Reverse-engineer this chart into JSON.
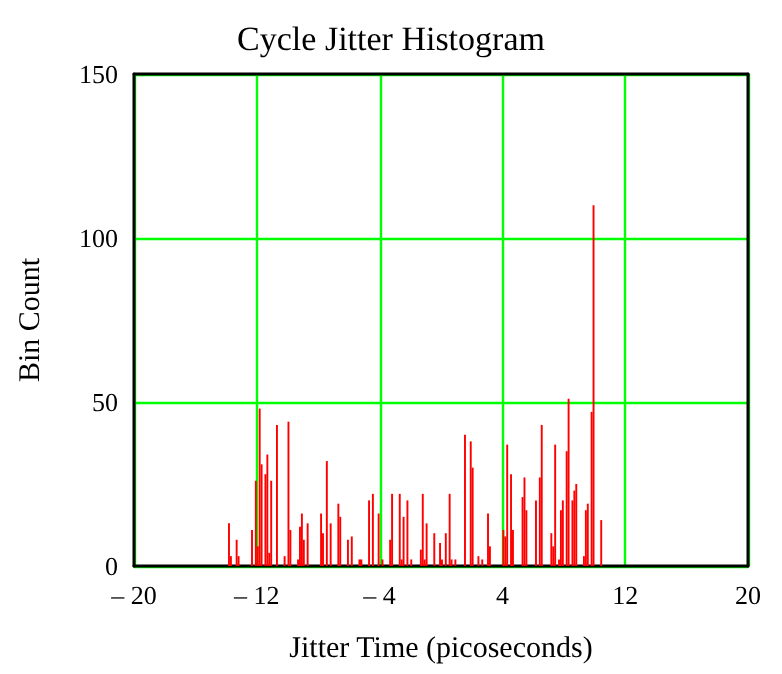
{
  "chart_data": {
    "type": "histogram",
    "title": "Cycle Jitter Histogram",
    "xlabel": "Jitter Time (picoseconds)",
    "ylabel": "Bin Count",
    "color": "#ff0000",
    "bins": [
      -13.875,
      -13.75,
      -13.625,
      -13.375,
      -13.25,
      -13.125,
      -12.375,
      -12.25,
      -12.125,
      -12,
      -11.875,
      -11.75,
      -11.625,
      -11.5,
      -11.375,
      -11.25,
      -11.125,
      -11,
      -10.75,
      -10.625,
      -10.25,
      -10.125,
      -10,
      -9.875,
      -9.75,
      -9.375,
      -9.25,
      -9.125,
      -9,
      -8.875,
      -8.75,
      -8.625,
      -7.875,
      -7.75,
      -7.625,
      -7.5,
      -7.375,
      -7.25,
      -7.125,
      -6.75,
      -6.625,
      -6.5,
      -6.125,
      -6,
      -5.875,
      -5.75,
      -5.375,
      -5.125,
      -4.75,
      -4.625,
      -4.5,
      -4.375,
      -4.125,
      -4,
      -3.875,
      -3.75,
      -3.375,
      -3.25,
      -3.125,
      -2.75,
      -2.625,
      -2.5,
      -2.375,
      -2.25,
      -2.125,
      -2,
      -1.875,
      -1.375,
      -1.25,
      -1.125,
      -1,
      -0.875,
      -0.5,
      -0.375,
      -0.125,
      0,
      0.125,
      0.25,
      0.375,
      0.5,
      0.625,
      0.75,
      0.875,
      1,
      1.5,
      1.625,
      1.875,
      2,
      2.125,
      2.375,
      2.5,
      2.625,
      2.75,
      3,
      3.125,
      3.25,
      4,
      4.125,
      4.25,
      4.375,
      4.5,
      4.625,
      4.75,
      5.25,
      5.375,
      5.5,
      5.625,
      6.125,
      6.25,
      6.375,
      6.5,
      6.625,
      7.125,
      7.25,
      7.375,
      7.5,
      7.625,
      7.75,
      7.875,
      8,
      8.125,
      8.25,
      8.375,
      8.5,
      8.625,
      8.75,
      8.875,
      9.25,
      9.375,
      9.5,
      9.625,
      9.75,
      9.875,
      10,
      10.375,
      10.5
    ],
    "values": [
      13,
      3,
      0,
      8,
      3,
      0,
      11,
      0,
      26,
      6,
      48,
      31,
      0,
      28,
      34,
      4,
      26,
      0,
      43,
      0,
      3,
      0,
      44,
      11,
      0,
      2,
      12,
      16,
      8,
      0,
      13,
      0,
      16,
      10,
      0,
      32,
      0,
      13,
      0,
      19,
      15,
      0,
      8,
      0,
      9,
      0,
      2,
      0,
      20,
      0,
      22,
      0,
      16,
      0,
      2,
      0,
      8,
      22,
      0,
      22,
      2,
      15,
      0,
      20,
      0,
      2,
      0,
      5,
      22,
      2,
      13,
      0,
      10,
      0,
      7,
      2,
      0,
      10,
      0,
      22,
      2,
      0,
      2,
      0,
      40,
      0,
      38,
      30,
      0,
      3,
      0,
      2,
      0,
      16,
      6,
      0,
      11,
      9,
      37,
      0,
      28,
      11,
      0,
      21,
      27,
      17,
      0,
      20,
      0,
      27,
      43,
      0,
      10,
      6,
      37,
      0,
      2,
      17,
      20,
      0,
      35,
      51,
      0,
      20,
      23,
      25,
      0,
      3,
      17,
      19,
      0,
      47,
      110,
      0,
      14
    ],
    "xlim": [
      -20,
      20
    ],
    "xticks": [
      {
        "value": -20,
        "label": "– 20"
      },
      {
        "value": -12,
        "label": "– 12"
      },
      {
        "value": -4,
        "label": "– 4"
      },
      4,
      12,
      20
    ],
    "ylim": [
      0,
      150
    ],
    "yticks": [
      0,
      50,
      100,
      150
    ],
    "grid": true
  }
}
